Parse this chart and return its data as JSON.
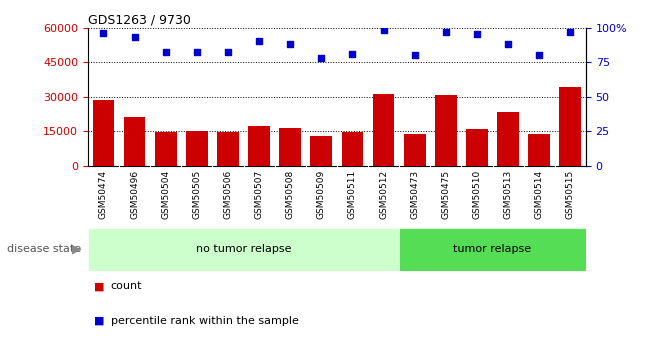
{
  "title": "GDS1263 / 9730",
  "samples": [
    "GSM50474",
    "GSM50496",
    "GSM50504",
    "GSM50505",
    "GSM50506",
    "GSM50507",
    "GSM50508",
    "GSM50509",
    "GSM50511",
    "GSM50512",
    "GSM50473",
    "GSM50475",
    "GSM50510",
    "GSM50513",
    "GSM50514",
    "GSM50515"
  ],
  "counts": [
    28500,
    21000,
    14800,
    15200,
    14800,
    17000,
    16200,
    12800,
    14700,
    31000,
    13800,
    30500,
    15800,
    23500,
    13800,
    34000
  ],
  "percentiles": [
    96,
    93,
    82,
    82,
    82,
    90,
    88,
    78,
    81,
    98,
    80,
    97,
    95,
    88,
    80,
    97
  ],
  "bar_color": "#cc0000",
  "dot_color": "#0000cc",
  "group1_label": "no tumor relapse",
  "group2_label": "tumor relapse",
  "group1_color": "#ccffcc",
  "group2_color": "#55dd55",
  "group1_count": 10,
  "group2_count": 6,
  "ylim_left": [
    0,
    60000
  ],
  "ylim_right": [
    0,
    100
  ],
  "yticks_left": [
    0,
    15000,
    30000,
    45000,
    60000
  ],
  "yticks_right": [
    0,
    25,
    50,
    75,
    100
  ],
  "ytick_labels_right": [
    "0",
    "25",
    "50",
    "75",
    "100%"
  ],
  "grid_values": [
    15000,
    30000,
    45000
  ],
  "legend_count_label": "count",
  "legend_pct_label": "percentile rank within the sample",
  "disease_state_label": "disease state",
  "left_axis_color": "#cc0000",
  "right_axis_color": "#0000cc",
  "xticklabel_bg": "#d0d0d0",
  "plot_bg": "#ffffff"
}
